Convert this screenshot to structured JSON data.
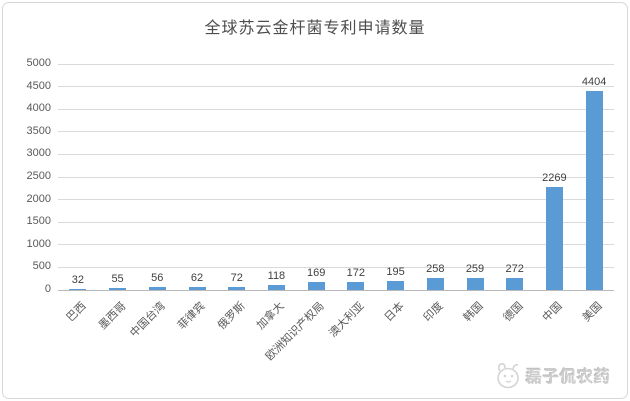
{
  "chart_data": {
    "type": "bar",
    "title": "全球苏云金杆菌专利申请数量",
    "categories": [
      "巴西",
      "墨西哥",
      "中国台湾",
      "菲律宾",
      "俄罗斯",
      "加拿大",
      "欧洲知识产权局",
      "澳大利亚",
      "日本",
      "印度",
      "韩国",
      "德国",
      "中国",
      "美国"
    ],
    "values": [
      32,
      55,
      56,
      62,
      72,
      118,
      169,
      172,
      195,
      258,
      259,
      272,
      2269,
      4404
    ],
    "xlabel": "",
    "ylabel": "",
    "ylim": [
      0,
      5000
    ],
    "yticks": [
      0,
      500,
      1000,
      1500,
      2000,
      2500,
      3000,
      3500,
      4000,
      4500,
      5000
    ],
    "grid": true,
    "legend": "none",
    "data_labels": true,
    "bar_color": "#5b9bd5",
    "gridline_color": "#d9d9d9",
    "axis_line_color": "#b9b9b9",
    "tick_label_color": "#595959",
    "data_label_color": "#3f3f3f",
    "title_color": "#4d4d4d"
  },
  "watermark": {
    "text": "磊子侃农药",
    "icon": "cartoon-face-icon",
    "color": "#cdcdcd"
  }
}
